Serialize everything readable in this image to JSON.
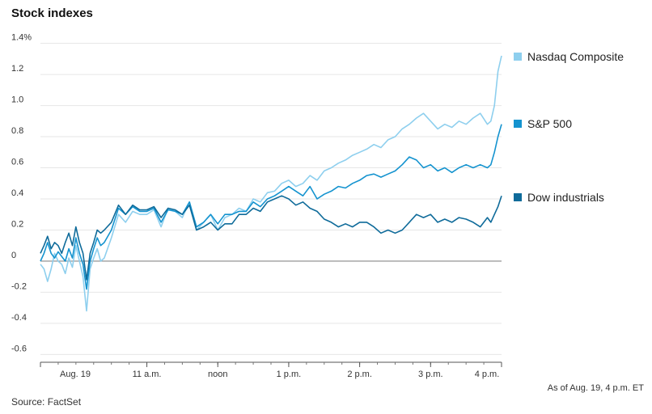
{
  "chart_data": {
    "type": "line",
    "title": "Stock indexes",
    "xlabel": "",
    "ylabel": "",
    "ylim": [
      -0.65,
      1.45
    ],
    "y_ticks": [
      {
        "value": 1.4,
        "label": "1.4%"
      },
      {
        "value": 1.2,
        "label": "1.2"
      },
      {
        "value": 1.0,
        "label": "1.0"
      },
      {
        "value": 0.8,
        "label": "0.8"
      },
      {
        "value": 0.6,
        "label": "0.6"
      },
      {
        "value": 0.4,
        "label": "0.4"
      },
      {
        "value": 0.2,
        "label": "0.2"
      },
      {
        "value": 0,
        "label": "0"
      },
      {
        "value": -0.2,
        "label": "-0.2"
      },
      {
        "value": -0.4,
        "label": "-0.4"
      },
      {
        "value": -0.6,
        "label": "-0.6"
      }
    ],
    "x_ticks": [
      {
        "value": 9.5,
        "label": "Aug. 19"
      },
      {
        "value": 11,
        "label": "11 a.m."
      },
      {
        "value": 12,
        "label": "noon"
      },
      {
        "value": 13,
        "label": "1 p.m."
      },
      {
        "value": 14,
        "label": "2 p.m."
      },
      {
        "value": 15,
        "label": "3 p.m."
      },
      {
        "value": 16,
        "label": "4 p.m."
      }
    ],
    "xlim": [
      9.5,
      16
    ],
    "x_unit": "hour of day (ET)",
    "grid": true,
    "legend_position": "right",
    "series": [
      {
        "name": "Nasdaq Composite",
        "color": "#8ecfee",
        "x": [
          9.5,
          9.55,
          9.6,
          9.65,
          9.7,
          9.75,
          9.8,
          9.85,
          9.9,
          9.95,
          10.0,
          10.05,
          10.1,
          10.15,
          10.2,
          10.25,
          10.3,
          10.35,
          10.4,
          10.5,
          10.6,
          10.7,
          10.8,
          10.9,
          11.0,
          11.1,
          11.2,
          11.3,
          11.4,
          11.5,
          11.6,
          11.7,
          11.8,
          11.9,
          12.0,
          12.1,
          12.2,
          12.3,
          12.4,
          12.5,
          12.6,
          12.7,
          12.8,
          12.9,
          13.0,
          13.1,
          13.2,
          13.3,
          13.4,
          13.5,
          13.6,
          13.7,
          13.8,
          13.9,
          14.0,
          14.1,
          14.2,
          14.3,
          14.4,
          14.5,
          14.6,
          14.7,
          14.8,
          14.9,
          15.0,
          15.1,
          15.2,
          15.3,
          15.4,
          15.5,
          15.6,
          15.7,
          15.8,
          15.85,
          15.9,
          15.95,
          16.0
        ],
        "y": [
          -0.02,
          -0.05,
          -0.13,
          -0.05,
          0.05,
          0.0,
          -0.02,
          -0.08,
          0.02,
          -0.04,
          0.1,
          0.0,
          -0.1,
          -0.32,
          -0.05,
          0.02,
          0.08,
          0.0,
          0.02,
          0.15,
          0.3,
          0.25,
          0.32,
          0.3,
          0.3,
          0.33,
          0.22,
          0.34,
          0.32,
          0.28,
          0.38,
          0.2,
          0.25,
          0.3,
          0.2,
          0.28,
          0.3,
          0.34,
          0.32,
          0.4,
          0.38,
          0.44,
          0.45,
          0.5,
          0.52,
          0.48,
          0.5,
          0.55,
          0.52,
          0.58,
          0.6,
          0.63,
          0.65,
          0.68,
          0.7,
          0.72,
          0.75,
          0.73,
          0.78,
          0.8,
          0.85,
          0.88,
          0.92,
          0.95,
          0.9,
          0.85,
          0.88,
          0.86,
          0.9,
          0.88,
          0.92,
          0.95,
          0.88,
          0.9,
          1.0,
          1.22,
          1.32
        ]
      },
      {
        "name": "S&P 500",
        "color": "#1493cf",
        "x": [
          9.5,
          9.55,
          9.6,
          9.65,
          9.7,
          9.75,
          9.8,
          9.85,
          9.9,
          9.95,
          10.0,
          10.05,
          10.1,
          10.15,
          10.2,
          10.25,
          10.3,
          10.35,
          10.4,
          10.5,
          10.6,
          10.7,
          10.8,
          10.9,
          11.0,
          11.1,
          11.2,
          11.3,
          11.4,
          11.5,
          11.6,
          11.7,
          11.8,
          11.9,
          12.0,
          12.1,
          12.2,
          12.3,
          12.4,
          12.5,
          12.6,
          12.7,
          12.8,
          12.9,
          13.0,
          13.1,
          13.2,
          13.3,
          13.4,
          13.5,
          13.6,
          13.7,
          13.8,
          13.9,
          14.0,
          14.1,
          14.2,
          14.3,
          14.4,
          14.5,
          14.6,
          14.7,
          14.8,
          14.9,
          15.0,
          15.1,
          15.2,
          15.3,
          15.4,
          15.5,
          15.6,
          15.7,
          15.8,
          15.85,
          15.9,
          15.95,
          16.0
        ],
        "y": [
          0.0,
          0.05,
          0.12,
          0.05,
          0.02,
          0.06,
          0.03,
          0.0,
          0.08,
          0.02,
          0.15,
          0.05,
          -0.02,
          -0.18,
          0.0,
          0.08,
          0.15,
          0.1,
          0.12,
          0.2,
          0.34,
          0.3,
          0.35,
          0.32,
          0.32,
          0.34,
          0.25,
          0.33,
          0.32,
          0.3,
          0.38,
          0.22,
          0.25,
          0.3,
          0.24,
          0.3,
          0.3,
          0.32,
          0.32,
          0.38,
          0.35,
          0.4,
          0.42,
          0.45,
          0.48,
          0.45,
          0.42,
          0.48,
          0.4,
          0.43,
          0.45,
          0.48,
          0.47,
          0.5,
          0.52,
          0.55,
          0.56,
          0.54,
          0.56,
          0.58,
          0.62,
          0.67,
          0.65,
          0.6,
          0.62,
          0.58,
          0.6,
          0.57,
          0.6,
          0.62,
          0.6,
          0.62,
          0.6,
          0.62,
          0.7,
          0.8,
          0.88
        ]
      },
      {
        "name": "Dow industrials",
        "color": "#0f6b9a",
        "x": [
          9.5,
          9.55,
          9.6,
          9.65,
          9.7,
          9.75,
          9.8,
          9.85,
          9.9,
          9.95,
          10.0,
          10.05,
          10.1,
          10.15,
          10.2,
          10.25,
          10.3,
          10.35,
          10.4,
          10.5,
          10.6,
          10.7,
          10.8,
          10.9,
          11.0,
          11.1,
          11.2,
          11.3,
          11.4,
          11.5,
          11.6,
          11.7,
          11.8,
          11.9,
          12.0,
          12.1,
          12.2,
          12.3,
          12.4,
          12.5,
          12.6,
          12.7,
          12.8,
          12.9,
          13.0,
          13.1,
          13.2,
          13.3,
          13.4,
          13.5,
          13.6,
          13.7,
          13.8,
          13.9,
          14.0,
          14.1,
          14.2,
          14.3,
          14.4,
          14.5,
          14.6,
          14.7,
          14.8,
          14.9,
          15.0,
          15.1,
          15.2,
          15.3,
          15.4,
          15.5,
          15.6,
          15.7,
          15.8,
          15.85,
          15.9,
          15.95,
          16.0
        ],
        "y": [
          0.05,
          0.1,
          0.16,
          0.08,
          0.12,
          0.1,
          0.05,
          0.12,
          0.18,
          0.1,
          0.22,
          0.12,
          0.05,
          -0.12,
          0.05,
          0.12,
          0.2,
          0.18,
          0.2,
          0.25,
          0.36,
          0.3,
          0.36,
          0.33,
          0.33,
          0.35,
          0.28,
          0.34,
          0.33,
          0.3,
          0.36,
          0.2,
          0.22,
          0.25,
          0.2,
          0.24,
          0.24,
          0.3,
          0.3,
          0.34,
          0.32,
          0.38,
          0.4,
          0.42,
          0.4,
          0.36,
          0.38,
          0.34,
          0.32,
          0.27,
          0.25,
          0.22,
          0.24,
          0.22,
          0.25,
          0.25,
          0.22,
          0.18,
          0.2,
          0.18,
          0.2,
          0.25,
          0.3,
          0.28,
          0.3,
          0.25,
          0.27,
          0.25,
          0.28,
          0.27,
          0.25,
          0.22,
          0.28,
          0.25,
          0.3,
          0.35,
          0.42
        ]
      }
    ]
  },
  "footer": {
    "source": "Source: FactSet",
    "as_of": "As of Aug. 19, 4 p.m. ET"
  }
}
